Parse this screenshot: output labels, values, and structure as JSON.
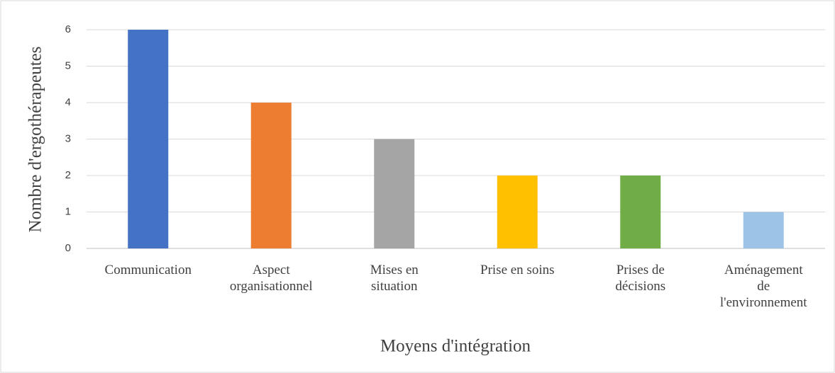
{
  "chart_data": {
    "type": "bar",
    "categories": [
      "Communication",
      "Aspect organisationnel",
      "Mises en situation",
      "Prise en soins",
      "Prises de décisions",
      "Aménagement de l'environnement"
    ],
    "values": [
      6,
      4,
      3,
      2,
      2,
      1
    ],
    "colors": [
      "#4472c4",
      "#ed7d31",
      "#a5a5a5",
      "#ffc000",
      "#70ad47",
      "#9dc3e6"
    ],
    "x_label": "Moyens d'intégration",
    "y_label": "Nombre d'ergothérapeutes",
    "ylim": [
      0,
      6
    ],
    "yticks": [
      0,
      1,
      2,
      3,
      4,
      5,
      6
    ],
    "grid": true
  }
}
